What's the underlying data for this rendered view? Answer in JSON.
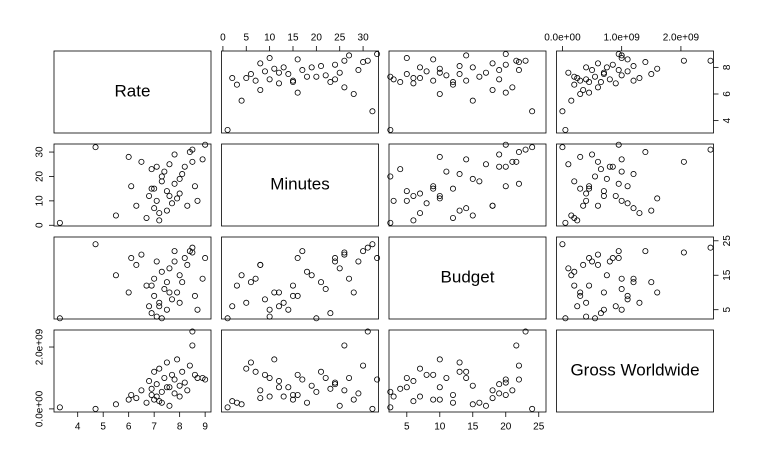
{
  "chart_data": {
    "type": "scatter_matrix",
    "color": "#000000",
    "variables": [
      {
        "name": "Rate",
        "lim": [
          3.07,
          9.23
        ],
        "xticks": [
          4,
          5,
          6,
          7,
          8,
          9
        ],
        "yticks": [
          4,
          6,
          8
        ],
        "values": [
          3.3,
          4.7,
          5.5,
          6.0,
          6.1,
          6.3,
          6.5,
          6.7,
          6.8,
          6.9,
          7.0,
          7.0,
          7.1,
          7.1,
          7.2,
          7.3,
          7.3,
          7.4,
          7.5,
          7.5,
          7.6,
          7.7,
          7.8,
          7.8,
          7.9,
          8.0,
          8.0,
          8.1,
          8.2,
          8.3,
          8.4,
          8.5,
          8.5,
          8.6,
          8.7,
          8.9,
          9.0,
          7.2,
          6.9,
          7.6
        ]
      },
      {
        "name": "Minutes",
        "lim": [
          -0.3,
          33.3
        ],
        "xticks": [
          0,
          5,
          10,
          15,
          20,
          25,
          30
        ],
        "yticks": [
          0,
          10,
          20,
          30
        ],
        "values": [
          1,
          32,
          4,
          28,
          16,
          8,
          26,
          3,
          12,
          23,
          7,
          15,
          10,
          24,
          5,
          18,
          20,
          22,
          6,
          14,
          25,
          9,
          17,
          29,
          11,
          19,
          13,
          21,
          24,
          8,
          30,
          31,
          26,
          16,
          10,
          27,
          33,
          2,
          15,
          12
        ]
      },
      {
        "name": "Budget",
        "lim": [
          2.3,
          26.1
        ],
        "xticks": [
          5,
          10,
          15,
          20,
          25
        ],
        "yticks": [
          5,
          15,
          25
        ],
        "values": [
          2.5,
          24,
          15,
          10,
          20,
          18,
          21,
          12,
          6,
          4,
          14,
          9,
          3,
          19,
          7,
          16,
          2.5,
          11,
          13,
          5,
          17,
          8,
          22,
          19,
          10,
          15,
          7,
          13,
          20,
          18,
          22,
          23,
          21.6,
          9,
          5,
          14,
          20,
          6,
          12,
          10
        ]
      },
      {
        "name": "Gross Worldwide",
        "lim": [
          -100000000,
          2550000000
        ],
        "xticks": [
          {
            "value": 0,
            "label": "0.0e+00"
          },
          {
            "value": 1000000000,
            "label": "1.0e+09"
          },
          {
            "value": 2000000000,
            "label": "2.0e+09"
          }
        ],
        "yticks": [
          {
            "value": 0,
            "label": "0.0e+00"
          },
          {
            "value": 2000000000,
            "label": "2.0e+09"
          }
        ],
        "values": [
          50000000,
          0,
          150000000,
          300000000,
          450000000,
          350000000,
          600000000,
          200000000,
          900000000,
          650000000,
          1200000000,
          300000000,
          400000000,
          800000000,
          1300000000,
          200000000,
          550000000,
          1000000000,
          1500000000,
          700000000,
          100000000,
          1100000000,
          950000000,
          500000000,
          1600000000,
          750000000,
          400000000,
          1200000000,
          850000000,
          600000000,
          1400000000,
          2500000000,
          2050000000,
          1100000000,
          1000000000,
          1000000000,
          950000000,
          250000000,
          450000000,
          700000000
        ]
      }
    ]
  }
}
